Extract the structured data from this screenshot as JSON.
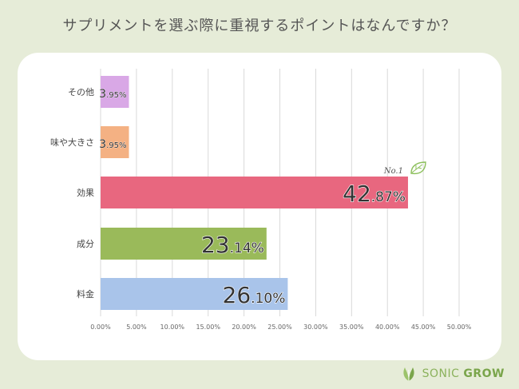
{
  "title": "サプリメントを選ぶ際に重視するポイントはなんですか？",
  "badge": "No.1",
  "brand": {
    "name_light": "SONIC ",
    "name_bold": "GROW"
  },
  "chart_data": {
    "type": "bar",
    "orientation": "horizontal",
    "categories": [
      "その他",
      "味や大きさ",
      "効果",
      "成分",
      "料金"
    ],
    "values": [
      3.95,
      3.95,
      42.87,
      23.14,
      26.1
    ],
    "labels": [
      "3.95%",
      "3.95%",
      "42.87%",
      "23.14%",
      "26.10%"
    ],
    "colors": [
      "#d9a8e6",
      "#f4b183",
      "#e8677f",
      "#9aba5a",
      "#a9c4ea"
    ],
    "xlim": [
      0,
      50
    ],
    "xticks": [
      "0.00%",
      "5.00%",
      "10.00%",
      "15.00%",
      "20.00%",
      "25.00%",
      "30.00%",
      "35.00%",
      "40.00%",
      "45.00%",
      "50.00%"
    ],
    "grid": true
  }
}
